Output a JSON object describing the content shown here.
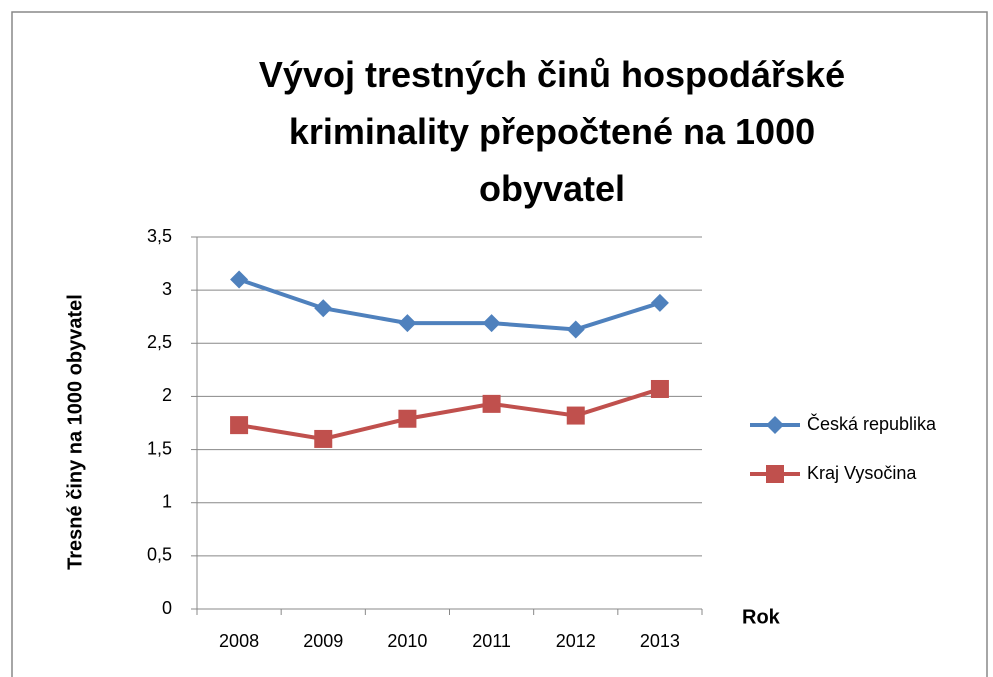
{
  "chart_data": {
    "type": "line",
    "title": "Vývoj trestných činů hospodářské kriminality přepočtené na 1000 obyvatel",
    "y_label": "Tresné činy na 1000 obyvatel",
    "x_label": "Rok",
    "categories": [
      "2008",
      "2009",
      "2010",
      "2011",
      "2012",
      "2013"
    ],
    "series": [
      {
        "name": "Česká republika",
        "color": "#4f81bd",
        "marker": "diamond",
        "values": [
          3.1,
          2.83,
          2.69,
          2.69,
          2.63,
          2.88
        ]
      },
      {
        "name": "Kraj Vysočina",
        "color": "#c0504d",
        "marker": "square",
        "values": [
          1.73,
          1.6,
          1.79,
          1.93,
          1.82,
          2.07
        ]
      }
    ],
    "ylim": [
      0,
      3.5
    ],
    "yticks": [
      0,
      {
        "value": 0.5,
        "label": "0,5"
      },
      1,
      {
        "value": 1.5,
        "label": "1,5"
      },
      2,
      {
        "value": 2.5,
        "label": "2,5"
      },
      3,
      {
        "value": 3.5,
        "label": "3,5"
      }
    ],
    "grid": true,
    "legend": "right"
  }
}
